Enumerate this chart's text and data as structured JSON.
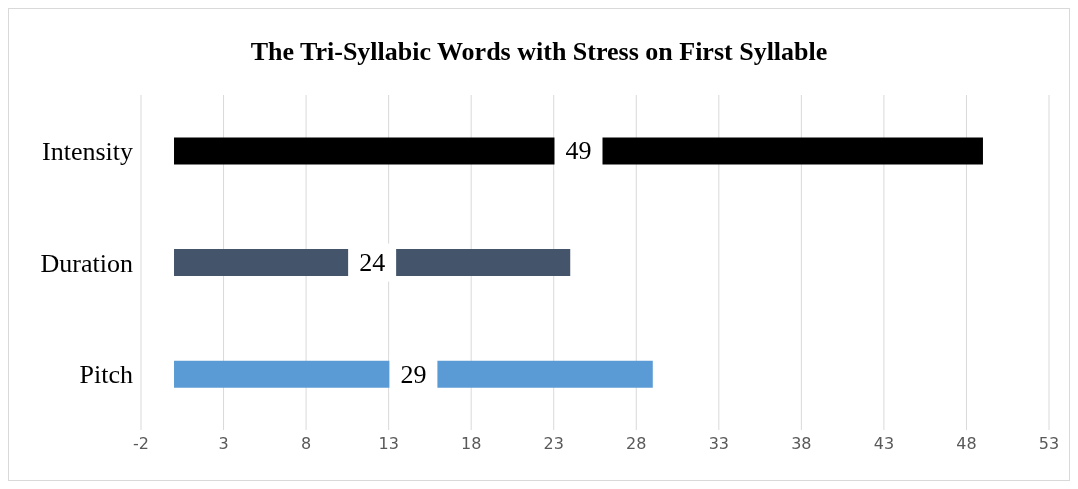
{
  "chart_data": {
    "type": "bar",
    "orientation": "horizontal",
    "title": "The Tri-Syllabic Words with Stress on First Syllable",
    "categories": [
      "Intensity",
      "Duration",
      "Pitch"
    ],
    "values": [
      49,
      24,
      29
    ],
    "colors": [
      "#000000",
      "#44546a",
      "#5b9bd5"
    ],
    "xlim": [
      -2,
      53
    ],
    "xticks": [
      -2,
      3,
      8,
      13,
      18,
      23,
      28,
      33,
      38,
      43,
      48,
      53
    ],
    "grid": "x",
    "data_labels": true,
    "legend": false
  }
}
